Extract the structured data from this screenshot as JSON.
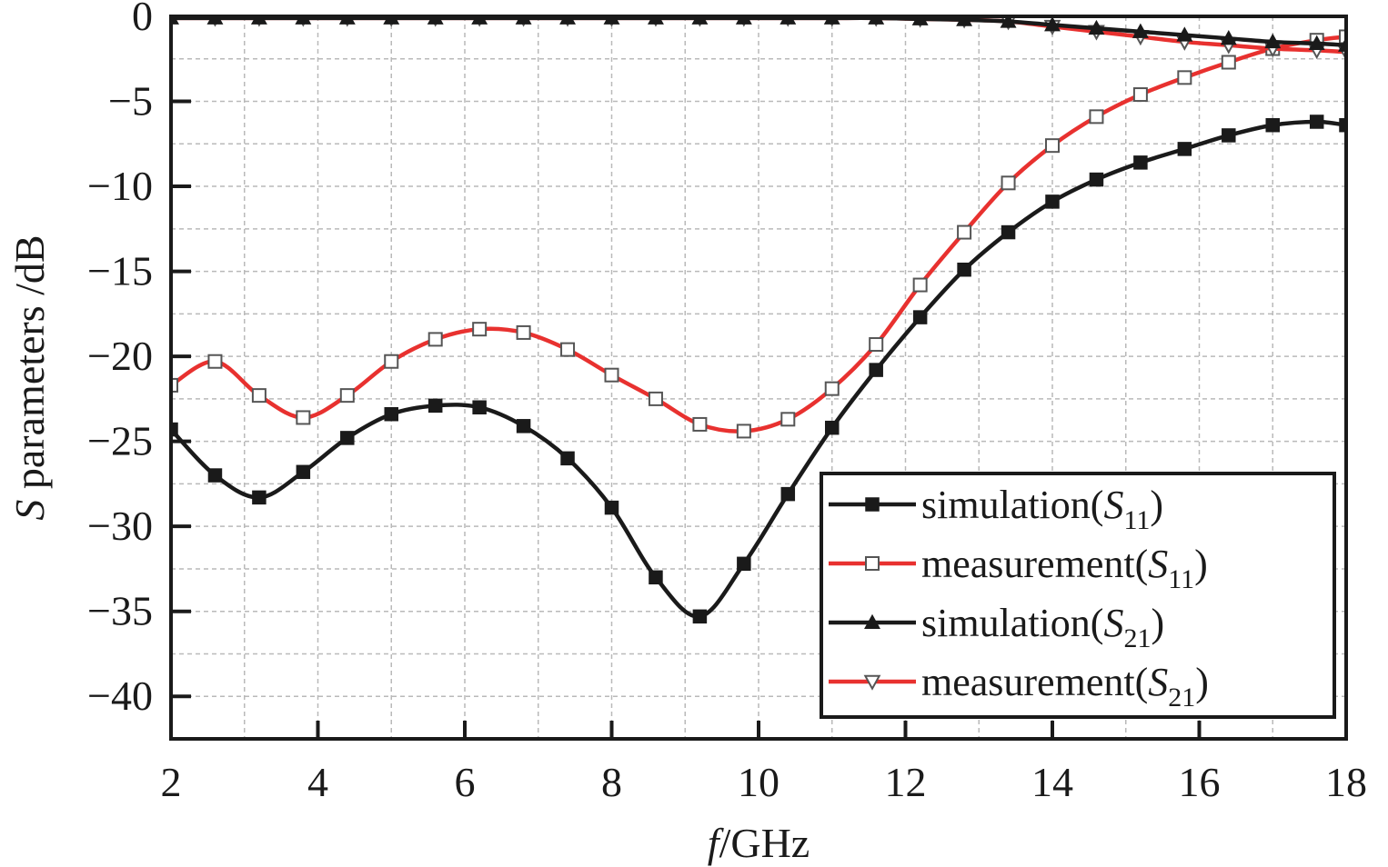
{
  "chart_data": {
    "type": "line",
    "xlabel_italic": "f",
    "xlabel_rest": "/GHz",
    "ylabel_italic": "S",
    "ylabel_rest": " parameters /dB",
    "xlim": [
      2,
      18
    ],
    "ylim": [
      -42.5,
      0
    ],
    "xticks": [
      2,
      4,
      6,
      8,
      10,
      12,
      14,
      16,
      18
    ],
    "yticks": [
      0,
      -5,
      -10,
      -15,
      -20,
      -25,
      -30,
      -35,
      -40
    ],
    "ytick_labels": [
      "0",
      "−5",
      "−10",
      "−15",
      "−20",
      "−25",
      "−30",
      "−35",
      "−40"
    ],
    "grid": true,
    "legend_position": "bottom-right",
    "colors": {
      "simulation": "#1a1a1a",
      "measurement": "#e8312f"
    },
    "series": [
      {
        "legend_base": "simulation(",
        "legend_sub_letter": "S",
        "legend_sub_digits": "11",
        "legend_close": ")",
        "color": "#1a1a1a",
        "marker": "square-filled",
        "x": [
          2.0,
          2.6,
          3.2,
          3.8,
          4.4,
          5.0,
          5.6,
          6.2,
          6.8,
          7.4,
          8.0,
          8.6,
          9.2,
          9.8,
          10.4,
          11.0,
          11.6,
          12.2,
          12.8,
          13.4,
          14.0,
          14.6,
          15.2,
          15.8,
          16.4,
          17.0,
          17.6,
          18.0
        ],
        "values": [
          -24.3,
          -27.0,
          -28.3,
          -26.8,
          -24.8,
          -23.4,
          -22.9,
          -23.0,
          -24.1,
          -26.0,
          -28.9,
          -33.0,
          -35.3,
          -32.2,
          -28.1,
          -24.2,
          -20.8,
          -17.7,
          -14.9,
          -12.7,
          -10.9,
          -9.6,
          -8.6,
          -7.8,
          -7.0,
          -6.4,
          -6.2,
          -6.4
        ]
      },
      {
        "legend_base": "measurement(",
        "legend_sub_letter": "S",
        "legend_sub_digits": "11",
        "legend_close": ")",
        "color": "#e8312f",
        "marker": "square-open",
        "x": [
          2.0,
          2.6,
          3.2,
          3.8,
          4.4,
          5.0,
          5.6,
          6.2,
          6.8,
          7.4,
          8.0,
          8.6,
          9.2,
          9.8,
          10.4,
          11.0,
          11.6,
          12.2,
          12.8,
          13.4,
          14.0,
          14.6,
          15.2,
          15.8,
          16.4,
          17.0,
          17.6,
          18.0
        ],
        "values": [
          -21.7,
          -20.3,
          -22.3,
          -23.6,
          -22.3,
          -20.3,
          -19.0,
          -18.4,
          -18.6,
          -19.6,
          -21.1,
          -22.5,
          -24.0,
          -24.4,
          -23.7,
          -21.9,
          -19.3,
          -15.8,
          -12.7,
          -9.8,
          -7.6,
          -5.9,
          -4.6,
          -3.6,
          -2.7,
          -1.9,
          -1.4,
          -1.2
        ]
      },
      {
        "legend_base": "simulation(",
        "legend_sub_letter": "S",
        "legend_sub_digits": "21",
        "legend_close": ")",
        "color": "#1a1a1a",
        "marker": "triangle-up-filled",
        "x": [
          2.0,
          2.6,
          3.2,
          3.8,
          4.4,
          5.0,
          5.6,
          6.2,
          6.8,
          7.4,
          8.0,
          8.6,
          9.2,
          9.8,
          10.4,
          11.0,
          11.6,
          12.2,
          12.8,
          13.4,
          14.0,
          14.6,
          15.2,
          15.8,
          16.4,
          17.0,
          17.6,
          18.0
        ],
        "values": [
          -0.1,
          -0.1,
          -0.1,
          -0.1,
          -0.1,
          -0.1,
          -0.1,
          -0.1,
          -0.1,
          -0.1,
          -0.1,
          -0.1,
          -0.1,
          -0.1,
          -0.1,
          -0.1,
          -0.1,
          -0.15,
          -0.2,
          -0.3,
          -0.5,
          -0.7,
          -0.9,
          -1.1,
          -1.3,
          -1.5,
          -1.6,
          -1.7
        ]
      },
      {
        "legend_base": "measurement(",
        "legend_sub_letter": "S",
        "legend_sub_digits": "21",
        "legend_close": ")",
        "color": "#e8312f",
        "marker": "triangle-down-open",
        "x": [
          2.0,
          2.6,
          3.2,
          3.8,
          4.4,
          5.0,
          5.6,
          6.2,
          6.8,
          7.4,
          8.0,
          8.6,
          9.2,
          9.8,
          10.4,
          11.0,
          11.6,
          12.2,
          12.8,
          13.4,
          14.0,
          14.6,
          15.2,
          15.8,
          16.4,
          17.0,
          17.6,
          18.0
        ],
        "values": [
          -0.1,
          -0.1,
          -0.1,
          -0.1,
          -0.1,
          -0.1,
          -0.1,
          -0.1,
          -0.1,
          -0.1,
          -0.1,
          -0.1,
          -0.1,
          -0.1,
          -0.1,
          -0.1,
          -0.1,
          -0.15,
          -0.2,
          -0.3,
          -0.6,
          -0.9,
          -1.2,
          -1.5,
          -1.7,
          -1.9,
          -2.0,
          -2.1
        ]
      }
    ]
  }
}
